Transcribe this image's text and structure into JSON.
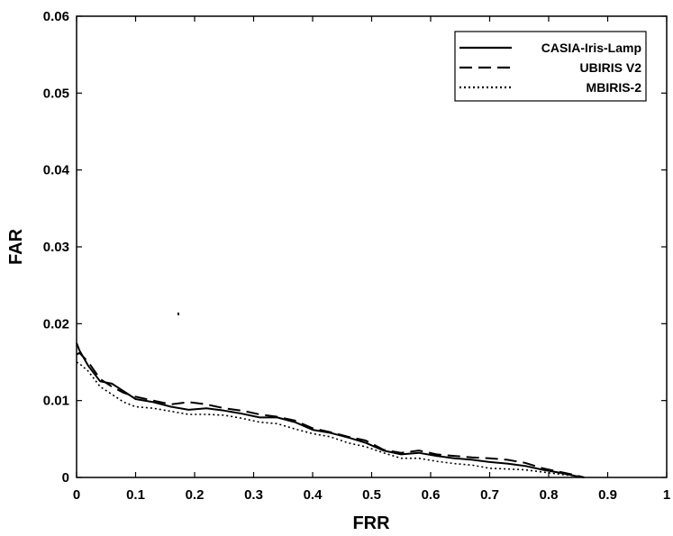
{
  "chart_data": {
    "type": "line",
    "title": "",
    "xlabel": "FRR",
    "ylabel": "FAR",
    "xlim": [
      0,
      1
    ],
    "ylim": [
      0,
      0.06
    ],
    "xticks": [
      "0",
      "0.1",
      "0.2",
      "0.3",
      "0.4",
      "0.5",
      "0.6",
      "0.7",
      "0.8",
      "0.9",
      "1"
    ],
    "yticks": [
      "0",
      "0.01",
      "0.02",
      "0.03",
      "0.04",
      "0.05",
      "0.06"
    ],
    "grid": false,
    "legend_position": "top-right",
    "series": [
      {
        "name": "CASIA-Iris-Lamp",
        "style": "solid",
        "color": "#000000",
        "x": [
          0,
          0.005,
          0.02,
          0.04,
          0.06,
          0.08,
          0.1,
          0.13,
          0.16,
          0.19,
          0.22,
          0.25,
          0.28,
          0.31,
          0.34,
          0.37,
          0.4,
          0.43,
          0.46,
          0.49,
          0.52,
          0.55,
          0.58,
          0.61,
          0.64,
          0.67,
          0.7,
          0.73,
          0.76,
          0.79,
          0.82,
          0.845,
          0.86
        ],
        "y": [
          0.0175,
          0.0165,
          0.0145,
          0.0125,
          0.0122,
          0.0112,
          0.0102,
          0.0098,
          0.0092,
          0.0088,
          0.009,
          0.0087,
          0.0083,
          0.0078,
          0.0078,
          0.0072,
          0.0062,
          0.0058,
          0.0052,
          0.0045,
          0.0035,
          0.003,
          0.0032,
          0.0028,
          0.0025,
          0.0023,
          0.002,
          0.0018,
          0.0015,
          0.001,
          0.0006,
          0.0002,
          0
        ]
      },
      {
        "name": "UBIRIS V2",
        "style": "dashed",
        "color": "#000000",
        "x": [
          0,
          0.005,
          0.02,
          0.04,
          0.06,
          0.08,
          0.1,
          0.13,
          0.16,
          0.19,
          0.22,
          0.25,
          0.28,
          0.31,
          0.34,
          0.37,
          0.4,
          0.43,
          0.46,
          0.49,
          0.52,
          0.55,
          0.58,
          0.61,
          0.64,
          0.67,
          0.7,
          0.73,
          0.76,
          0.79,
          0.82,
          0.845,
          0.86
        ],
        "y": [
          0.016,
          0.0162,
          0.015,
          0.0128,
          0.0118,
          0.011,
          0.0105,
          0.01,
          0.0095,
          0.0098,
          0.0095,
          0.009,
          0.0087,
          0.0082,
          0.0079,
          0.0074,
          0.0064,
          0.0059,
          0.0053,
          0.0048,
          0.0036,
          0.0032,
          0.0035,
          0.003,
          0.0028,
          0.0026,
          0.0025,
          0.0023,
          0.0019,
          0.0012,
          0.0007,
          0.0003,
          0
        ]
      },
      {
        "name": "MBIRIS-2",
        "style": "dotted",
        "color": "#000000",
        "x": [
          0,
          0.005,
          0.02,
          0.04,
          0.06,
          0.08,
          0.1,
          0.13,
          0.16,
          0.19,
          0.22,
          0.25,
          0.28,
          0.31,
          0.34,
          0.37,
          0.4,
          0.43,
          0.46,
          0.49,
          0.52,
          0.55,
          0.58,
          0.61,
          0.64,
          0.67,
          0.7,
          0.73,
          0.76,
          0.79,
          0.82,
          0.845,
          0.86
        ],
        "y": [
          0.015,
          0.0148,
          0.0138,
          0.0118,
          0.0108,
          0.0098,
          0.0092,
          0.009,
          0.0086,
          0.0082,
          0.0082,
          0.0081,
          0.0077,
          0.0072,
          0.007,
          0.0063,
          0.0057,
          0.0053,
          0.0045,
          0.004,
          0.0032,
          0.0025,
          0.0025,
          0.0021,
          0.0018,
          0.0016,
          0.0012,
          0.0011,
          0.001,
          0.0007,
          0.0004,
          0.0002,
          0
        ]
      }
    ],
    "annotations": []
  }
}
